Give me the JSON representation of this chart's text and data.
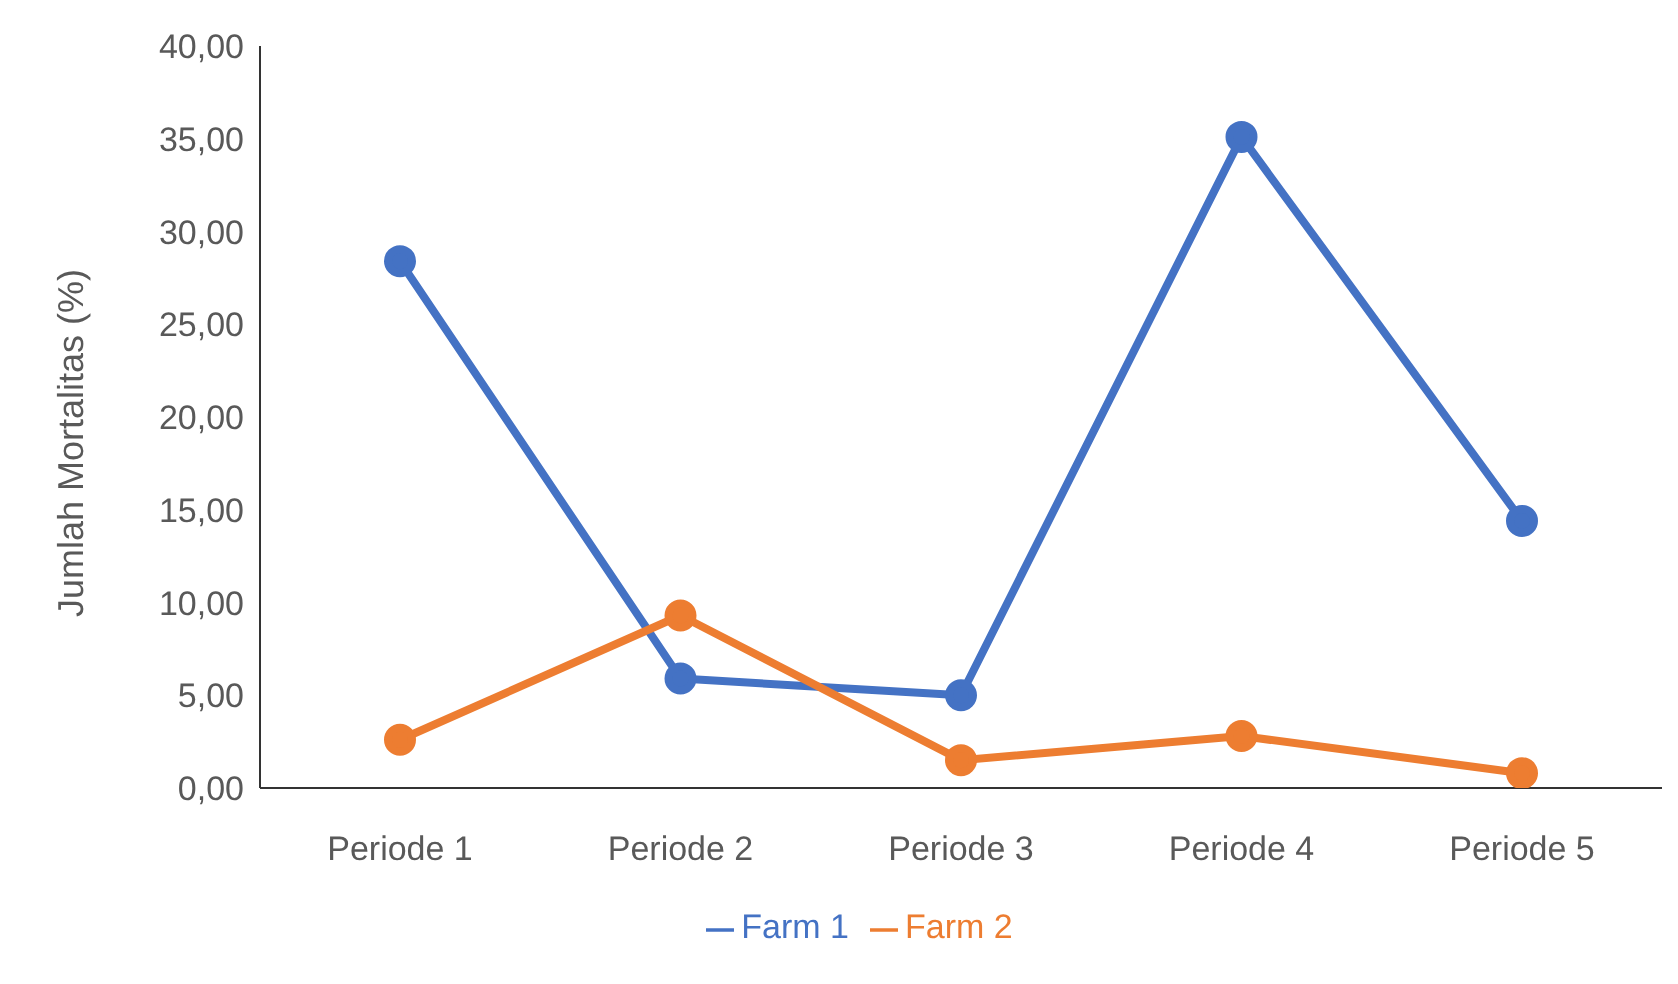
{
  "chart_data": {
    "type": "line",
    "ylabel": "Jumlah Mortalitas (%)",
    "categories": [
      "Periode 1",
      "Periode 2",
      "Periode 3",
      "Periode 4",
      "Periode 5"
    ],
    "series": [
      {
        "name": "Farm 1",
        "color": "#4472c4",
        "values": [
          28.4,
          5.9,
          5.0,
          35.1,
          14.4
        ]
      },
      {
        "name": "Farm 2",
        "color": "#ed7d31",
        "values": [
          2.6,
          9.3,
          1.5,
          2.8,
          0.8
        ]
      }
    ],
    "ylim": [
      0,
      40
    ],
    "yticks": [
      {
        "value": 0,
        "label": "0,00"
      },
      {
        "value": 5,
        "label": "5,00"
      },
      {
        "value": 10,
        "label": "10,00"
      },
      {
        "value": 15,
        "label": "15,00"
      },
      {
        "value": 20,
        "label": "20,00"
      },
      {
        "value": 25,
        "label": "25,00"
      },
      {
        "value": 30,
        "label": "30,00"
      },
      {
        "value": 35,
        "label": "35,00"
      },
      {
        "value": 40,
        "label": "40,00"
      }
    ],
    "grid": false,
    "legend": "bottom",
    "marker": "circle",
    "line_style": "solid"
  }
}
